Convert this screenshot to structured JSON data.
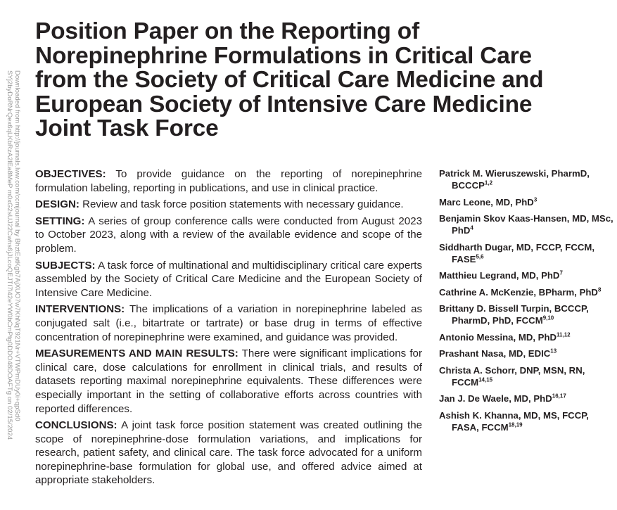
{
  "side_note": {
    "line1": "Downloaded from http://journals.lww.com/ccmjournal by BhztEatKgb7AjXUO7w7KhNqT921Nr+VTWPmDUy0i+qpSd0",
    "line2": "SYj2byDoRNrQex6qLKbRzA2lEa8MeP m0xG2sUJ22Cwhs6jJLcoQEJTI7l42eYW0bCmPtg0DDO48DOAFTg on 02/15/2024"
  },
  "title": "Position Paper on the Reporting of Norepinephrine Formulations in Critical Care from the Society of Critical Care Medicine and European Society of Intensive Care Medicine Joint Task Force",
  "abstract": [
    {
      "heading": "OBJECTIVES:",
      "text": "To provide guidance on the reporting of norepinephrine formulation labeling, reporting in publications, and use in clinical practice."
    },
    {
      "heading": "DESIGN:",
      "text": "Review and task force position statements with necessary guidance."
    },
    {
      "heading": "SETTING:",
      "text": "A series of group conference calls were conducted from August 2023 to October 2023, along with a review of the available evidence and scope of the problem."
    },
    {
      "heading": "SUBJECTS:",
      "text": "A task force of multinational and multidisciplinary critical care experts assembled by the Society of Critical Care Medicine and the European Society of Intensive Care Medicine."
    },
    {
      "heading": "INTERVENTIONS:",
      "text": "The implications of a variation in norepinephrine labeled as conjugated salt (i.e., bitartrate or tartrate) or base drug in terms of effective concentration of norepinephrine were examined, and guidance was provided."
    },
    {
      "heading": "MEASUREMENTS AND MAIN RESULTS:",
      "text": "There were significant implications for clinical care, dose calculations for enrollment in clinical trials, and results of datasets reporting maximal norepinephrine equivalents. These differences were especially important in the setting of collaborative efforts across countries with reported differences."
    },
    {
      "heading": "CONCLUSIONS:",
      "text": "A joint task force position statement was created outlining the scope of norepinephrine-dose formulation variations, and implications for research, patient safety, and clinical care. The task force advocated for a uniform norepinephrine-base formulation for global use, and offered advice aimed at appropriate stakeholders."
    }
  ],
  "authors": [
    {
      "name": "Patrick M. Wieruszewski, PharmD, BCCCP",
      "aff": "1,2"
    },
    {
      "name": "Marc Leone, MD, PhD",
      "aff": "3"
    },
    {
      "name": "Benjamin Skov Kaas-Hansen, MD, MSc, PhD",
      "aff": "4"
    },
    {
      "name": "Siddharth Dugar, MD, FCCP, FCCM, FASE",
      "aff": "5,6"
    },
    {
      "name": "Matthieu Legrand, MD, PhD",
      "aff": "7"
    },
    {
      "name": "Cathrine A. McKenzie, BPharm, PhD",
      "aff": "8"
    },
    {
      "name": "Brittany D. Bissell Turpin, BCCCP, PharmD, PhD, FCCM",
      "aff": "9,10"
    },
    {
      "name": "Antonio Messina, MD, PhD",
      "aff": "11,12"
    },
    {
      "name": "Prashant Nasa, MD, EDIC",
      "aff": "13"
    },
    {
      "name": "Christa A. Schorr, DNP, MSN, RN, FCCM",
      "aff": "14,15"
    },
    {
      "name": "Jan J. De Waele, MD, PhD",
      "aff": "16,17"
    },
    {
      "name": "Ashish K. Khanna, MD, MS, FCCP, FASA, FCCM",
      "aff": "18,19"
    }
  ]
}
